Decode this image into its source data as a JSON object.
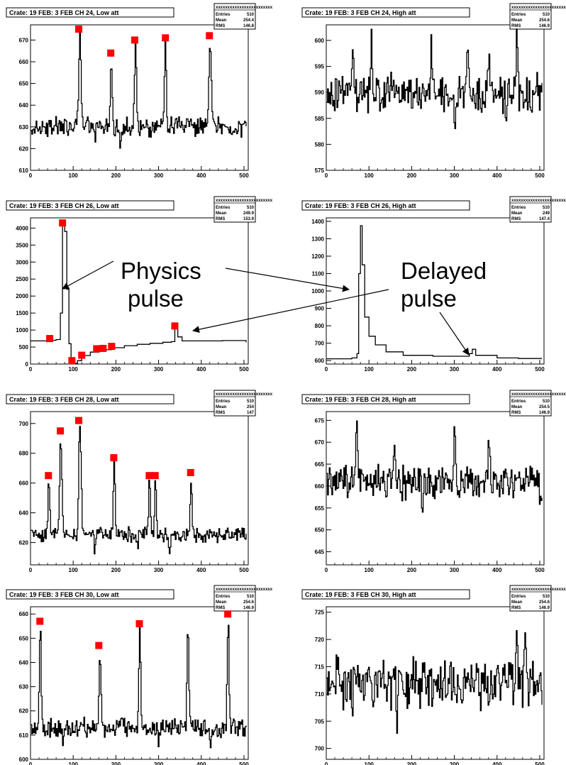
{
  "chart_data": [
    {
      "type": "line",
      "title": "Crate: 19 FEB: 3  FEB CH 24, Low att",
      "stats": {
        "name": "xxxxxxxxxxxxxxxxxxxxxxxx",
        "rows": [
          [
            "Entries",
            "510"
          ],
          [
            "Mean",
            "254.4"
          ],
          [
            "RMS",
            "146.8"
          ]
        ]
      },
      "xlim": [
        0,
        510
      ],
      "ylim": [
        610,
        677
      ],
      "xticks": [
        0,
        100,
        200,
        300,
        400,
        500
      ],
      "yticks": [
        610,
        620,
        630,
        640,
        650,
        660,
        670
      ],
      "baseline": 630,
      "noise": 3.5,
      "peaks": [
        [
          115,
          674,
          3.5
        ],
        [
          188,
          662,
          3
        ],
        [
          245,
          668,
          3
        ],
        [
          315,
          669,
          3
        ],
        [
          420,
          670,
          3.5
        ]
      ],
      "dips": [
        [
          150,
          622
        ],
        [
          210,
          618
        ],
        [
          280,
          622
        ]
      ],
      "markers": [
        [
          113,
          675
        ],
        [
          188,
          664
        ],
        [
          244,
          670
        ],
        [
          316,
          671
        ],
        [
          419,
          672
        ]
      ]
    },
    {
      "type": "line",
      "title": "Crate: 19 FEB: 3  FEB CH 24, High att",
      "stats": {
        "name": "xxxxxxxxxxxxxxxxxxxxxxxx",
        "rows": [
          [
            "Entries",
            "510"
          ],
          [
            "Mean",
            "254.6"
          ],
          [
            "RMS",
            "146.9"
          ]
        ]
      },
      "xlim": [
        0,
        510
      ],
      "ylim": [
        575,
        603
      ],
      "xticks": [
        0,
        100,
        200,
        300,
        400,
        500
      ],
      "yticks": [
        575,
        580,
        585,
        590,
        595,
        600
      ],
      "baseline": 590,
      "noise": 3,
      "peaks": [
        [
          60,
          598,
          3
        ],
        [
          105,
          600,
          3
        ],
        [
          245,
          600,
          3
        ],
        [
          330,
          601,
          3
        ],
        [
          380,
          597,
          3
        ],
        [
          445,
          600,
          3
        ]
      ],
      "dips": [
        [
          200,
          581
        ],
        [
          420,
          582
        ],
        [
          300,
          584
        ]
      ],
      "markers": []
    },
    {
      "type": "line",
      "title": "Crate: 19 FEB: 3  FEB CH 26, Low att",
      "stats": {
        "name": "xxxxxxxxxxxxxxxxxxxxxxxx",
        "rows": [
          [
            "Entries",
            "510"
          ],
          [
            "Mean",
            "249.9"
          ],
          [
            "RMS",
            "153.9"
          ]
        ]
      },
      "xlim": [
        0,
        510
      ],
      "ylim": [
        0,
        4300
      ],
      "xticks": [
        0,
        100,
        200,
        300,
        400,
        500
      ],
      "yticks": [
        0,
        500,
        1000,
        1500,
        2000,
        2500,
        3000,
        3500,
        4000
      ],
      "points": [
        [
          0,
          680
        ],
        [
          40,
          700
        ],
        [
          60,
          720
        ],
        [
          70,
          1500
        ],
        [
          75,
          4150
        ],
        [
          80,
          3900
        ],
        [
          85,
          2200
        ],
        [
          90,
          600
        ],
        [
          95,
          60
        ],
        [
          100,
          20
        ],
        [
          110,
          100
        ],
        [
          120,
          250
        ],
        [
          140,
          350
        ],
        [
          160,
          420
        ],
        [
          190,
          480
        ],
        [
          220,
          540
        ],
        [
          250,
          580
        ],
        [
          280,
          610
        ],
        [
          310,
          640
        ],
        [
          330,
          660
        ],
        [
          338,
          1100
        ],
        [
          345,
          800
        ],
        [
          355,
          680
        ],
        [
          400,
          680
        ],
        [
          450,
          690
        ],
        [
          500,
          690
        ],
        [
          505,
          640
        ]
      ],
      "markers": [
        [
          45,
          750
        ],
        [
          75,
          4150
        ],
        [
          97,
          100
        ],
        [
          120,
          260
        ],
        [
          155,
          450
        ],
        [
          170,
          460
        ],
        [
          190,
          520
        ],
        [
          338,
          1120
        ]
      ]
    },
    {
      "type": "line",
      "title": "Crate: 19 FEB: 3  FEB CH 26, High att",
      "stats": {
        "name": "xxxxxxxxxxxxxxxxxxxxxxxx",
        "rows": [
          [
            "Entries",
            "510"
          ],
          [
            "Mean",
            "249"
          ],
          [
            "RMS",
            "147.4"
          ]
        ]
      },
      "xlim": [
        0,
        510
      ],
      "ylim": [
        580,
        1420
      ],
      "xticks": [
        0,
        100,
        200,
        300,
        400,
        500
      ],
      "yticks": [
        600,
        700,
        800,
        900,
        1000,
        1100,
        1200,
        1300,
        1400
      ],
      "points": [
        [
          0,
          610
        ],
        [
          60,
          615
        ],
        [
          72,
          640
        ],
        [
          76,
          1100
        ],
        [
          80,
          1375
        ],
        [
          84,
          1150
        ],
        [
          90,
          850
        ],
        [
          100,
          740
        ],
        [
          115,
          690
        ],
        [
          140,
          650
        ],
        [
          180,
          630
        ],
        [
          250,
          625
        ],
        [
          320,
          625
        ],
        [
          335,
          640
        ],
        [
          342,
          665
        ],
        [
          350,
          630
        ],
        [
          400,
          615
        ],
        [
          450,
          612
        ],
        [
          505,
          612
        ]
      ],
      "markers": []
    },
    {
      "type": "line",
      "title": "Crate: 19 FEB: 3  FEB CH 28, Low att",
      "stats": {
        "name": "xxxxxxxxxxxxxxxxxxxxxxxx",
        "rows": [
          [
            "Entries",
            "510"
          ],
          [
            "Mean",
            "254"
          ],
          [
            "RMS",
            "147"
          ]
        ]
      },
      "xlim": [
        0,
        510
      ],
      "ylim": [
        605,
        708
      ],
      "xticks": [
        0,
        100,
        200,
        300,
        400,
        500
      ],
      "yticks": [
        620,
        640,
        660,
        680,
        700
      ],
      "baseline": 625,
      "noise": 4,
      "peaks": [
        [
          42,
          662,
          3
        ],
        [
          70,
          692,
          3.5
        ],
        [
          115,
          700,
          4
        ],
        [
          195,
          675,
          3
        ],
        [
          278,
          663,
          3
        ],
        [
          292,
          662,
          3
        ],
        [
          375,
          665,
          3
        ]
      ],
      "dips": [
        [
          150,
          610
        ],
        [
          250,
          612
        ],
        [
          325,
          610
        ]
      ],
      "markers": [
        [
          42,
          665
        ],
        [
          70,
          695
        ],
        [
          113,
          702
        ],
        [
          195,
          677
        ],
        [
          278,
          665
        ],
        [
          292,
          665
        ],
        [
          375,
          667
        ]
      ]
    },
    {
      "type": "line",
      "title": "Crate: 19 FEB: 3  FEB CH 28, High att",
      "stats": {
        "name": "xxxxxxxxxxxxxxxxxxxxxxxx",
        "rows": [
          [
            "Entries",
            "510"
          ],
          [
            "Mean",
            "254.5"
          ],
          [
            "RMS",
            "146.9"
          ]
        ]
      },
      "xlim": [
        0,
        510
      ],
      "ylim": [
        642,
        677
      ],
      "xticks": [
        0,
        100,
        200,
        300,
        400,
        500
      ],
      "yticks": [
        645,
        650,
        655,
        660,
        665,
        670,
        675
      ],
      "baseline": 661,
      "noise": 3,
      "peaks": [
        [
          70,
          676,
          3
        ],
        [
          300,
          672,
          3
        ],
        [
          380,
          672,
          3
        ],
        [
          160,
          668,
          3
        ]
      ],
      "dips": [
        [
          175,
          653
        ],
        [
          225,
          653
        ],
        [
          500,
          654
        ]
      ],
      "markers": []
    },
    {
      "type": "line",
      "title": "Crate: 19 FEB: 3  FEB CH 30, Low att",
      "stats": {
        "name": "xxxxxxxxxxxxxxxxxxxxxxxx",
        "rows": [
          [
            "Entries",
            "510"
          ],
          [
            "Mean",
            "254.6"
          ],
          [
            "RMS",
            "146.9"
          ]
        ]
      },
      "xlim": [
        0,
        510
      ],
      "ylim": [
        600,
        663
      ],
      "xticks": [
        0,
        100,
        200,
        300,
        400,
        500
      ],
      "yticks": [
        600,
        610,
        620,
        630,
        640,
        650,
        660
      ],
      "baseline": 613,
      "noise": 3,
      "peaks": [
        [
          22,
          656,
          3
        ],
        [
          162,
          645,
          3
        ],
        [
          255,
          654,
          3
        ],
        [
          368,
          655,
          3
        ],
        [
          462,
          657,
          3
        ]
      ],
      "dips": [
        [
          75,
          603
        ],
        [
          300,
          605
        ],
        [
          420,
          604
        ]
      ],
      "markers": [
        [
          22,
          657
        ],
        [
          160,
          647
        ],
        [
          255,
          656
        ],
        [
          462,
          660
        ]
      ]
    },
    {
      "type": "line",
      "title": "Crate: 19 FEB: 3  FEB CH 30, High att",
      "stats": {
        "name": "xxxxxxxxxxxxxxxxxxxxxxxx",
        "rows": [
          [
            "Entries",
            "510"
          ],
          [
            "Mean",
            "254.6"
          ],
          [
            "RMS",
            "146.9"
          ]
        ]
      },
      "xlim": [
        0,
        510
      ],
      "ylim": [
        698,
        726
      ],
      "xticks": [
        0,
        100,
        200,
        300,
        400,
        500
      ],
      "yticks": [
        700,
        705,
        710,
        715,
        720,
        725
      ],
      "baseline": 712,
      "noise": 3.5,
      "peaks": [
        [
          445,
          725,
          3
        ],
        [
          465,
          723,
          3
        ],
        [
          25,
          719,
          3
        ]
      ],
      "dips": [
        [
          165,
          704
        ],
        [
          380,
          704
        ],
        [
          60,
          706
        ]
      ],
      "markers": []
    }
  ],
  "annotations": {
    "physics_line1": "Physics",
    "physics_line2": "pulse",
    "delayed_line1": "Delayed",
    "delayed_line2": "pulse"
  },
  "colors": {
    "trace": "#000000",
    "marker": "#ff0000",
    "frame": "#000000",
    "background": "#ffffff"
  }
}
